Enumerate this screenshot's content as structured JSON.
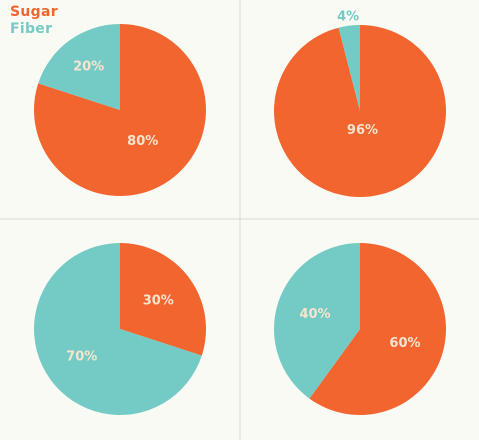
{
  "legend": [
    {
      "label": "Sugar",
      "color": "#f2652f"
    },
    {
      "label": "Fiber",
      "color": "#74cbc6"
    }
  ],
  "chart_data": [
    {
      "type": "pie",
      "legend": [
        "Sugar",
        "Fiber"
      ],
      "slices": [
        {
          "name": "Sugar",
          "value": 80,
          "label": "80%"
        },
        {
          "name": "Fiber",
          "value": 20,
          "label": "20%"
        }
      ]
    },
    {
      "type": "pie",
      "legend": [
        "Sugar",
        "Fiber"
      ],
      "slices": [
        {
          "name": "Sugar",
          "value": 96,
          "label": "96%"
        },
        {
          "name": "Fiber",
          "value": 4,
          "label": "4%"
        }
      ]
    },
    {
      "type": "pie",
      "legend": [
        "Sugar",
        "Fiber"
      ],
      "slices": [
        {
          "name": "Sugar",
          "value": 30,
          "label": "30%"
        },
        {
          "name": "Fiber",
          "value": 70,
          "label": "70%"
        }
      ]
    },
    {
      "type": "pie",
      "legend": [
        "Sugar",
        "Fiber"
      ],
      "slices": [
        {
          "name": "Sugar",
          "value": 60,
          "label": "60%"
        },
        {
          "name": "Fiber",
          "value": 40,
          "label": "40%"
        }
      ]
    }
  ],
  "colors": {
    "text_on_slice": "#f7e4cf",
    "divider": "#d9d9d3"
  }
}
